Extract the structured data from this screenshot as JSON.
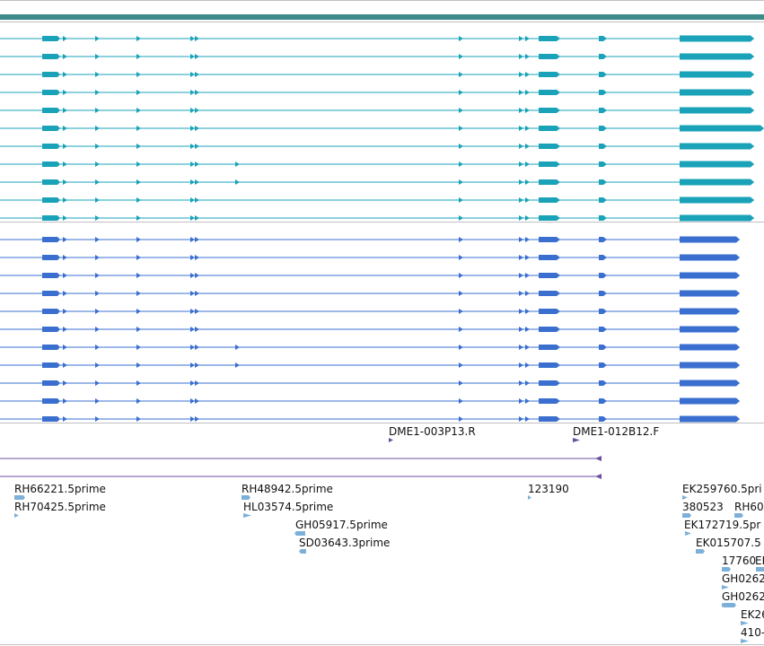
{
  "colors": {
    "track_bar": "#3c8a8a",
    "transcript_a": "#1aa3b8",
    "transcript_b": "#3a6fd0",
    "clone_marker": "#6c4fa0",
    "est_marker": "#7db0d8",
    "divider": "#c0c0c0"
  },
  "track_a": {
    "name": "gene-models-track-a",
    "rows": 11
  },
  "track_b": {
    "name": "gene-models-track-b",
    "rows": 11
  },
  "clone_track": {
    "labels": [
      "DME1-003P13.R",
      "DME1-012B12.F"
    ]
  },
  "est_track": {
    "labels": [
      "RH66221.5prime",
      "RH70425.5prime",
      "RH48942.5prime",
      "HL03574.5prime",
      "GH05917.5prime",
      "SD03643.3prime",
      "123190",
      "EK259760.5pri",
      "380523",
      "RH60",
      "EK172719.5pr",
      "EK015707.5",
      "17760",
      "EI",
      "GH0262",
      "GH0262",
      "EK26",
      "410-"
    ]
  }
}
